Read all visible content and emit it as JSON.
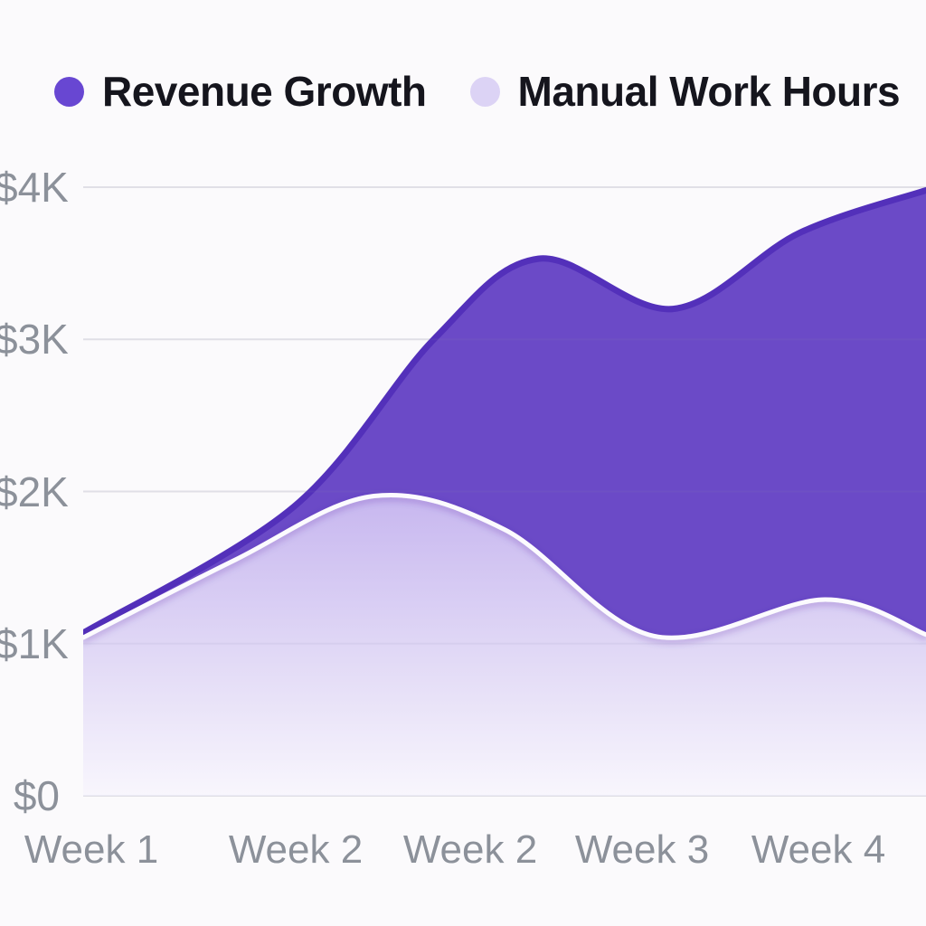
{
  "legend": {
    "items": [
      {
        "label": "Revenue Growth",
        "color": "#6847D2"
      },
      {
        "label": "Manual Work Hours",
        "color": "#DCD3F5"
      }
    ]
  },
  "chart_data": {
    "type": "area",
    "title": "",
    "categories": [
      "Week 1",
      "Week 2",
      "Week 2",
      "Week 3",
      "Week 4"
    ],
    "y_ticks": [
      "$0",
      "$1K",
      "$2K",
      "$3K",
      "$4K"
    ],
    "y_tick_values": [
      0,
      1000,
      2000,
      3000,
      4000
    ],
    "ylim": [
      0,
      4000
    ],
    "grid": true,
    "legend_position": "top-left",
    "background_color": "#FBFAFC",
    "gridline_color": "#EAE9ED",
    "axis_label_color": "#8C919A",
    "legend_text_color": "#15151D",
    "series": [
      {
        "name": "Revenue Growth",
        "fill": "#6B4AC7",
        "stroke": "#5330BA",
        "values_at_weeks": [
          1070,
          1900,
          3450,
          3270,
          3750
        ],
        "curve_samples": [
          {
            "fx": 0.0,
            "value": 1070
          },
          {
            "fx": 0.25,
            "value": 1900
          },
          {
            "fx": 0.416,
            "value": 3000
          },
          {
            "fx": 0.54,
            "value": 3530
          },
          {
            "fx": 0.7,
            "value": 3200
          },
          {
            "fx": 0.85,
            "value": 3700
          },
          {
            "fx": 1.0,
            "value": 3980
          }
        ]
      },
      {
        "name": "Manual Work Hours",
        "fill_top": "#C6B5EF",
        "fill_mid": "#E2DAF6",
        "fill_bottom": "#F9F7FD",
        "stroke": "#FCFBFE",
        "values_at_weeks": [
          1050,
          1750,
          1920,
          1050,
          1290
        ],
        "curve_samples": [
          {
            "fx": 0.0,
            "value": 1040
          },
          {
            "fx": 0.18,
            "value": 1550
          },
          {
            "fx": 0.345,
            "value": 1970
          },
          {
            "fx": 0.5,
            "value": 1750
          },
          {
            "fx": 0.677,
            "value": 1050
          },
          {
            "fx": 0.88,
            "value": 1290
          },
          {
            "fx": 1.0,
            "value": 1060
          }
        ]
      }
    ]
  }
}
